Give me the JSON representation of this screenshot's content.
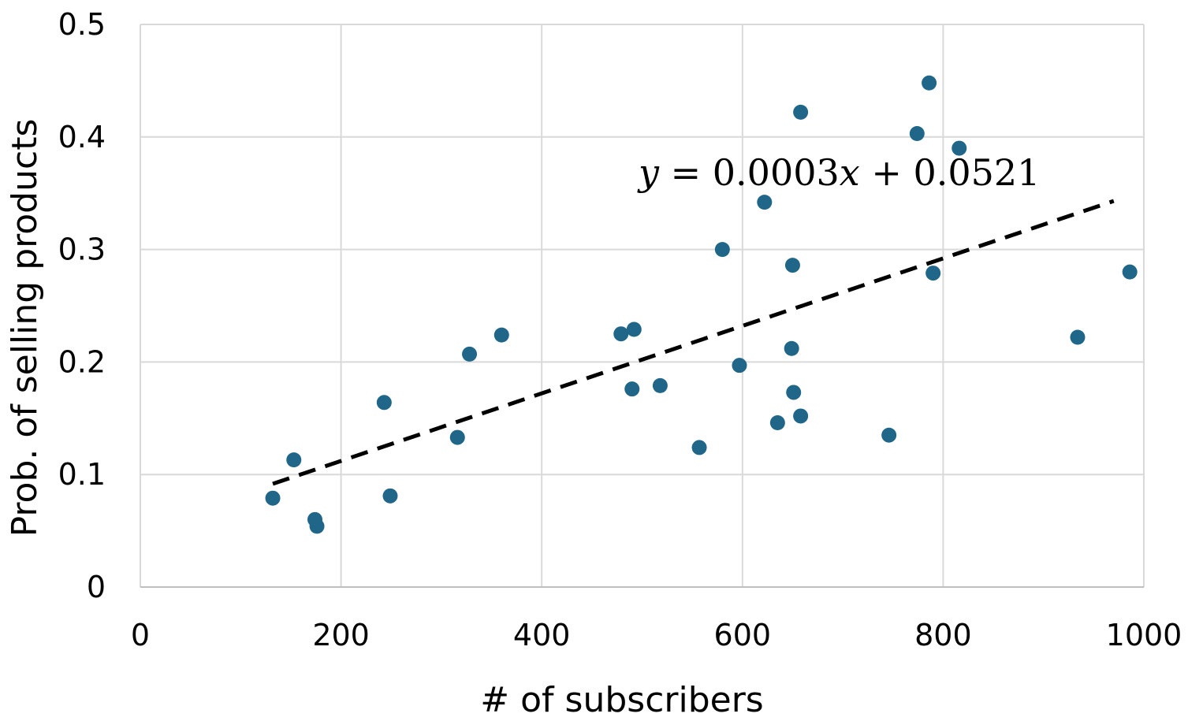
{
  "chart_data": {
    "type": "scatter",
    "title": "",
    "xlabel": "# of subscribers",
    "ylabel": "Prob. of selling products",
    "xlim": [
      0,
      1000
    ],
    "ylim": [
      0,
      0.5
    ],
    "x_ticks": [
      "0",
      "200",
      "400",
      "600",
      "800",
      "1000"
    ],
    "y_ticks": [
      "0",
      "0.1",
      "0.2",
      "0.3",
      "0.4",
      "0.5"
    ],
    "grid": true,
    "legend": "none",
    "marker_color": "#1f6689",
    "series": [
      {
        "points": [
          [
            132,
            0.079
          ],
          [
            153,
            0.113
          ],
          [
            174,
            0.06
          ],
          [
            176,
            0.054
          ],
          [
            243,
            0.164
          ],
          [
            249,
            0.081
          ],
          [
            316,
            0.133
          ],
          [
            328,
            0.207
          ],
          [
            360,
            0.224
          ],
          [
            479,
            0.225
          ],
          [
            490,
            0.176
          ],
          [
            492,
            0.229
          ],
          [
            518,
            0.179
          ],
          [
            557,
            0.124
          ],
          [
            580,
            0.3
          ],
          [
            597,
            0.197
          ],
          [
            622,
            0.342
          ],
          [
            635,
            0.146
          ],
          [
            649,
            0.212
          ],
          [
            650,
            0.286
          ],
          [
            651,
            0.173
          ],
          [
            658,
            0.152
          ],
          [
            658,
            0.422
          ],
          [
            746,
            0.135
          ],
          [
            774,
            0.403
          ],
          [
            786,
            0.448
          ],
          [
            790,
            0.279
          ],
          [
            816,
            0.39
          ],
          [
            934,
            0.222
          ],
          [
            986,
            0.28
          ]
        ]
      }
    ],
    "trendline": {
      "style": "dashed",
      "color": "#000000",
      "slope": 0.0003,
      "intercept": 0.0521,
      "x_range": [
        132,
        970
      ],
      "equation_parts": [
        "y",
        " = 0.0003",
        "x",
        " + 0.0521"
      ]
    }
  }
}
